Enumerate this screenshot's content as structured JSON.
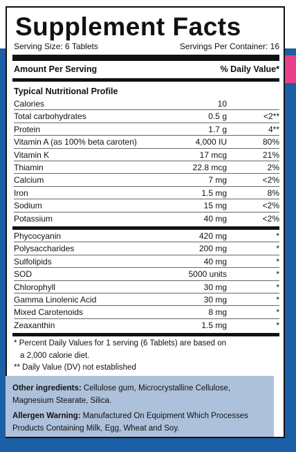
{
  "label": {
    "title": "Supplement Facts",
    "serving_size": "Serving Size: 6 Tablets",
    "servings_per_container": "Servings Per Container: 16",
    "amount_per_serving": "Amount Per Serving",
    "daily_value_header": "% Daily Value*",
    "section_title": "Typical Nutritional Profile"
  },
  "nutrients": [
    {
      "name": "Calories",
      "amount": "10",
      "dv": ""
    },
    {
      "name": "Total carbohydrates",
      "amount": "0.5 g",
      "dv": "<2**"
    },
    {
      "name": "Protein",
      "amount": "1.7 g",
      "dv": "4**"
    },
    {
      "name": "Vitamin A (as 100% beta caroten)",
      "amount": "4,000 IU",
      "dv": "80%"
    },
    {
      "name": "Vitamin K",
      "amount": "17 mcg",
      "dv": "21%"
    },
    {
      "name": "Thiamin",
      "amount": "22.8 mcg",
      "dv": "2%"
    },
    {
      "name": "Calcium",
      "amount": "7 mg",
      "dv": "<2%"
    },
    {
      "name": "Iron",
      "amount": "1.5 mg",
      "dv": "8%"
    },
    {
      "name": "Sodium",
      "amount": "15 mg",
      "dv": "<2%"
    },
    {
      "name": "Potassium",
      "amount": "40 mg",
      "dv": "<2%"
    }
  ],
  "other_nutrients": [
    {
      "name": "Phycocyanin",
      "amount": "420 mg",
      "dv": "*"
    },
    {
      "name": "Polysaccharides",
      "amount": "200 mg",
      "dv": "*"
    },
    {
      "name": "Sulfolipids",
      "amount": "40 mg",
      "dv": "*"
    },
    {
      "name": "SOD",
      "amount": "5000 units",
      "dv": "*"
    },
    {
      "name": "Chlorophyll",
      "amount": "30 mg",
      "dv": "*"
    },
    {
      "name": "Gamma Linolenic Acid",
      "amount": "30 mg",
      "dv": "*"
    },
    {
      "name": "Mixed Carotenoids",
      "amount": "8 mg",
      "dv": "*"
    },
    {
      "name": "Zeaxanthin",
      "amount": "1.5 mg",
      "dv": "*"
    }
  ],
  "footnotes": {
    "line1": "* Percent Daily Values for 1 serving (6 Tablets) are based on",
    "line2": "a 2,000 calorie diet.",
    "line3": "** Daily Value (DV) not established"
  },
  "other": {
    "ingredients_label": "Other ingredients:",
    "ingredients_text": " Cellulose gum, Microcrystalline Cellulose, Magnesium Stearate, Silica.",
    "allergen_label": "Allergen Warning:",
    "allergen_text": " Manufactured On Equipment Which Processes Products Containing Milk, Egg, Wheat and Soy."
  },
  "colors": {
    "background_blue": "#1b5fa6",
    "accent_pink": "#e8408a",
    "ingredients_panel": "#aec1da"
  }
}
